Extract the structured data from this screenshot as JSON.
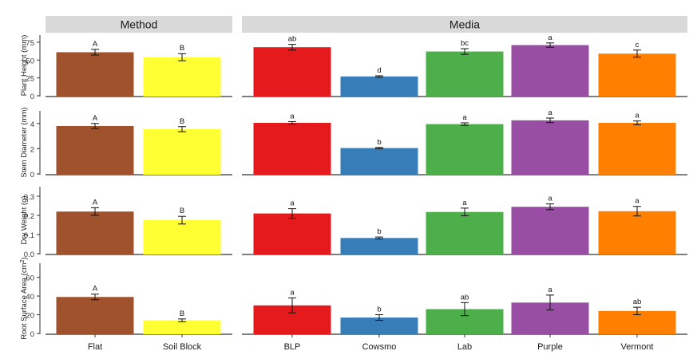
{
  "chart_data": {
    "type": "bar",
    "colors": {
      "Flat": "#A0522D",
      "Soil Block": "#FFFF33",
      "BLP": "#E41A1C",
      "Cowsmo": "#377EB8",
      "Lab": "#4DAF4A",
      "Purple": "#984EA3",
      "Vermont": "#FF7F00"
    },
    "facets": [
      {
        "title": "Method",
        "categories": [
          "Flat",
          "Soil Block"
        ]
      },
      {
        "title": "Media",
        "categories": [
          "BLP",
          "Cowsmo",
          "Lab",
          "Purple",
          "Vermont"
        ]
      }
    ],
    "panels": [
      {
        "ylabel": "Plant Height (mm)",
        "ylabel_sup": "",
        "ylabel_tail": "",
        "ylim": [
          0,
          85
        ],
        "yticks": [
          0,
          25,
          50,
          75
        ],
        "tick_labels": [
          "0",
          "25",
          "50",
          "75"
        ],
        "method": {
          "values": [
            61,
            54
          ],
          "errors": [
            4,
            5
          ],
          "letters": [
            "A",
            "B"
          ]
        },
        "media": {
          "values": [
            68,
            27,
            62,
            71,
            59
          ],
          "errors": [
            4,
            1,
            4,
            3,
            5
          ],
          "letters": [
            "ab",
            "d",
            "bc",
            "a",
            "c"
          ]
        }
      },
      {
        "ylabel": "Stem Diameter (mm)",
        "ylabel_sup": "",
        "ylabel_tail": "",
        "ylim": [
          0,
          5.0
        ],
        "yticks": [
          0,
          2,
          4
        ],
        "tick_labels": [
          "0",
          "2",
          "4"
        ],
        "method": {
          "values": [
            3.8,
            3.55
          ],
          "errors": [
            0.2,
            0.2
          ],
          "letters": [
            "A",
            "B"
          ]
        },
        "media": {
          "values": [
            4.05,
            2.05,
            3.95,
            4.25,
            4.05
          ],
          "errors": [
            0.1,
            0.05,
            0.1,
            0.18,
            0.15
          ],
          "letters": [
            "a",
            "b",
            "a",
            "a",
            "a"
          ]
        }
      },
      {
        "ylabel": "Dry Weight (g)",
        "ylabel_sup": "",
        "ylabel_tail": "",
        "ylim": [
          0,
          0.35
        ],
        "yticks": [
          0,
          0.1,
          0.2,
          0.3
        ],
        "tick_labels": [
          "0.0",
          "0.1",
          "0.2",
          "0.3"
        ],
        "method": {
          "values": [
            0.22,
            0.175
          ],
          "errors": [
            0.02,
            0.02
          ],
          "letters": [
            "A",
            "B"
          ]
        },
        "media": {
          "values": [
            0.21,
            0.082,
            0.218,
            0.245,
            0.222
          ],
          "errors": [
            0.025,
            0.005,
            0.02,
            0.015,
            0.025
          ],
          "letters": [
            "a",
            "b",
            "a",
            "a",
            "a"
          ]
        }
      },
      {
        "ylabel": "Root Surface Area (cm",
        "ylabel_sup": "2",
        "ylabel_tail": ")",
        "ylim": [
          0,
          75
        ],
        "yticks": [
          0,
          20,
          40,
          60
        ],
        "tick_labels": [
          "0",
          "20",
          "40",
          "60"
        ],
        "method": {
          "values": [
            39,
            14
          ],
          "errors": [
            3,
            1.5
          ],
          "letters": [
            "A",
            "B"
          ]
        },
        "media": {
          "values": [
            30,
            17,
            26,
            33,
            24
          ],
          "errors": [
            8,
            3,
            7,
            8,
            4
          ],
          "letters": [
            "a",
            "b",
            "ab",
            "a",
            "ab"
          ]
        }
      }
    ],
    "legend": "none",
    "grid": false
  }
}
